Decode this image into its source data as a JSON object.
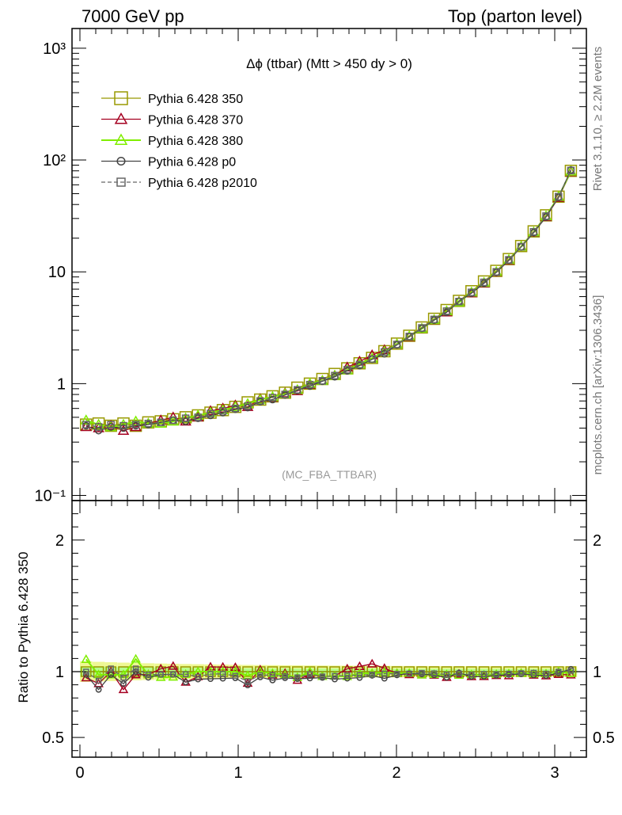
{
  "header": {
    "left": "7000 GeV pp",
    "right": "Top (parton level)"
  },
  "side_text": {
    "rivet": "Rivet 3.1.10, ≥ 2.2M events",
    "mcplots": "mcplots.cern.ch [arXiv:1306.3436]"
  },
  "chart_data": [
    {
      "type": "line",
      "title": "Δϕ (ttbar) (Mtt > 450 dy > 0)",
      "watermark": "(MC_FBA_TTBAR)",
      "yscale": "log",
      "xlim": [
        -0.05,
        3.2
      ],
      "ylim": [
        0.09,
        1500
      ],
      "ytick_labels": [
        {
          "value": 0.1,
          "label": "10⁻¹"
        },
        {
          "value": 1,
          "label": "1"
        },
        {
          "value": 10,
          "label": "10"
        },
        {
          "value": 100,
          "label": "10²"
        },
        {
          "value": 1000,
          "label": "10³"
        }
      ],
      "legend_position": "top-left",
      "x": [
        0.039,
        0.118,
        0.196,
        0.275,
        0.353,
        0.432,
        0.511,
        0.589,
        0.668,
        0.746,
        0.825,
        0.903,
        0.982,
        1.06,
        1.139,
        1.217,
        1.296,
        1.374,
        1.453,
        1.532,
        1.61,
        1.689,
        1.767,
        1.846,
        1.924,
        2.003,
        2.081,
        2.16,
        2.238,
        2.317,
        2.395,
        2.474,
        2.553,
        2.631,
        2.71,
        2.788,
        2.867,
        2.945,
        3.024,
        3.102
      ],
      "series": [
        {
          "name": "Pythia 6.428 350",
          "color": "#999900",
          "marker": "square-open",
          "line": "solid",
          "values": [
            0.43,
            0.44,
            0.42,
            0.44,
            0.42,
            0.45,
            0.46,
            0.48,
            0.5,
            0.52,
            0.55,
            0.58,
            0.62,
            0.68,
            0.72,
            0.77,
            0.83,
            0.92,
            1.0,
            1.1,
            1.22,
            1.37,
            1.52,
            1.7,
            1.95,
            2.28,
            2.68,
            3.18,
            3.8,
            4.55,
            5.5,
            6.7,
            8.2,
            10.2,
            13.0,
            17.0,
            23.0,
            32.0,
            47.0,
            80.0
          ]
        },
        {
          "name": "Pythia 6.428 370",
          "color": "#a50021",
          "marker": "triangle-open",
          "line": "solid",
          "values": [
            0.41,
            0.4,
            0.42,
            0.38,
            0.41,
            0.44,
            0.47,
            0.5,
            0.46,
            0.5,
            0.57,
            0.6,
            0.64,
            0.62,
            0.73,
            0.75,
            0.82,
            0.86,
            0.98,
            1.06,
            1.18,
            1.4,
            1.58,
            1.8,
            2.0,
            2.25,
            2.62,
            3.1,
            3.7,
            4.35,
            5.4,
            6.45,
            7.9,
            9.9,
            12.6,
            16.8,
            22.4,
            31.0,
            46.0,
            78.0
          ]
        },
        {
          "name": "Pythia 6.428 380",
          "color": "#80ee00",
          "marker": "triangle-open",
          "line": "solid",
          "values": [
            0.47,
            0.43,
            0.41,
            0.43,
            0.46,
            0.44,
            0.44,
            0.46,
            0.49,
            0.52,
            0.55,
            0.58,
            0.62,
            0.66,
            0.72,
            0.76,
            0.81,
            0.88,
            1.0,
            1.06,
            1.18,
            1.32,
            1.5,
            1.68,
            1.94,
            2.25,
            2.65,
            3.1,
            3.72,
            4.45,
            5.35,
            6.55,
            8.0,
            10.0,
            12.8,
            16.8,
            22.6,
            31.5,
            47.0,
            79.0
          ]
        },
        {
          "name": "Pythia 6.428 p0",
          "color": "#444444",
          "marker": "circle-open",
          "line": "solid",
          "values": [
            0.42,
            0.38,
            0.41,
            0.4,
            0.42,
            0.43,
            0.45,
            0.47,
            0.46,
            0.49,
            0.52,
            0.55,
            0.59,
            0.61,
            0.69,
            0.72,
            0.79,
            0.87,
            0.95,
            1.05,
            1.15,
            1.3,
            1.45,
            1.65,
            1.85,
            2.22,
            2.64,
            3.12,
            3.7,
            4.35,
            5.45,
            6.45,
            7.9,
            9.9,
            12.7,
            16.7,
            22.4,
            31.0,
            46.5,
            81.5
          ]
        },
        {
          "name": "Pythia 6.428 p2010",
          "color": "#666666",
          "marker": "square-open",
          "line": "dashed",
          "values": [
            0.43,
            0.41,
            0.43,
            0.42,
            0.43,
            0.44,
            0.45,
            0.47,
            0.49,
            0.5,
            0.54,
            0.57,
            0.6,
            0.63,
            0.7,
            0.75,
            0.8,
            0.88,
            0.98,
            1.06,
            1.18,
            1.33,
            1.48,
            1.66,
            1.92,
            2.24,
            2.64,
            3.15,
            3.75,
            4.45,
            5.42,
            6.55,
            8.05,
            10.0,
            12.8,
            16.8,
            22.8,
            31.5,
            47.0,
            80.5
          ]
        }
      ]
    },
    {
      "type": "line",
      "ylabel": "Ratio to Pythia 6.428 350",
      "xlim": [
        -0.05,
        3.2
      ],
      "ylim": [
        0.35,
        2.3
      ],
      "xticks": [
        0,
        1,
        2,
        3
      ],
      "xtick_labels": [
        "0",
        "1",
        "2",
        "3"
      ],
      "yticks": [
        0.5,
        1,
        2
      ],
      "ytick_labels": [
        "0.5",
        "1",
        "2"
      ],
      "reference": 1.0,
      "band_color": "#aaff88"
    }
  ]
}
